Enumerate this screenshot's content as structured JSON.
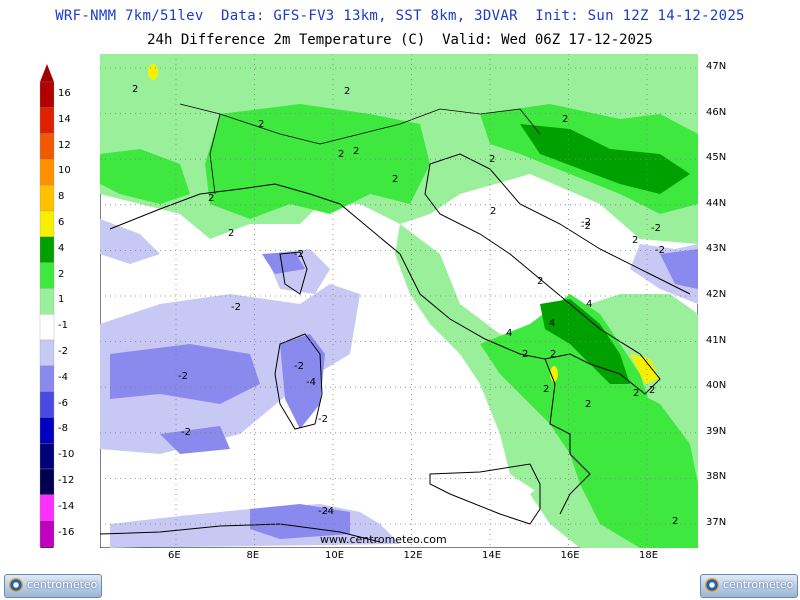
{
  "header": {
    "line1": "WRF-NMM 7km/51lev  Data: GFS-FV3 13km, SST 8km, 3DVAR  Init: Sun 12Z 14-12-2025",
    "line2": "24h Difference 2m Temperature (C)  Valid: Wed 06Z 17-12-2025"
  },
  "colorbar": {
    "levels": [
      {
        "label": "16",
        "color": "#b00000"
      },
      {
        "label": "14",
        "color": "#e02000"
      },
      {
        "label": "12",
        "color": "#f05a00"
      },
      {
        "label": "10",
        "color": "#ff9000"
      },
      {
        "label": "8",
        "color": "#ffc000"
      },
      {
        "label": "6",
        "color": "#f6f000"
      },
      {
        "label": "4",
        "color": "#00a000"
      },
      {
        "label": "2",
        "color": "#3ee83e"
      },
      {
        "label": "1",
        "color": "#9af09a"
      },
      {
        "label": "-1",
        "color": "#ffffff"
      },
      {
        "label": "-2",
        "color": "#c8c8f4"
      },
      {
        "label": "-4",
        "color": "#8a8aee"
      },
      {
        "label": "-6",
        "color": "#4a4ae0"
      },
      {
        "label": "-8",
        "color": "#0000c0"
      },
      {
        "label": "-10",
        "color": "#00007a"
      },
      {
        "label": "-12",
        "color": "#000050"
      },
      {
        "label": "-14",
        "color": "#ff30ff"
      },
      {
        "label": "-16",
        "color": "#c000c0"
      }
    ],
    "top_color": "#a00000",
    "bottom_color": "#800080"
  },
  "axes": {
    "lat_labels": [
      "47N",
      "46N",
      "45N",
      "44N",
      "43N",
      "42N",
      "41N",
      "40N",
      "39N",
      "38N",
      "37N"
    ],
    "lon_labels": [
      "6E",
      "8E",
      "10E",
      "12E",
      "14E",
      "16E",
      "18E"
    ]
  },
  "contour_labels": [
    "2",
    "2",
    "2",
    "2",
    "2",
    "2",
    "2",
    "2",
    "2",
    "2",
    "2",
    "2",
    "-2",
    "-2",
    "-2",
    "-2",
    "-2",
    "-2",
    "-2",
    "-4",
    "-2",
    "-2",
    "-2",
    "2",
    "4",
    "4",
    "4",
    "2",
    "2",
    "2",
    "2",
    "-4",
    "2",
    "2",
    "2",
    "-2"
  ],
  "watermark": "www.centrometeo.com",
  "logo_left": "centrometeo",
  "logo_right": "centrometeo"
}
